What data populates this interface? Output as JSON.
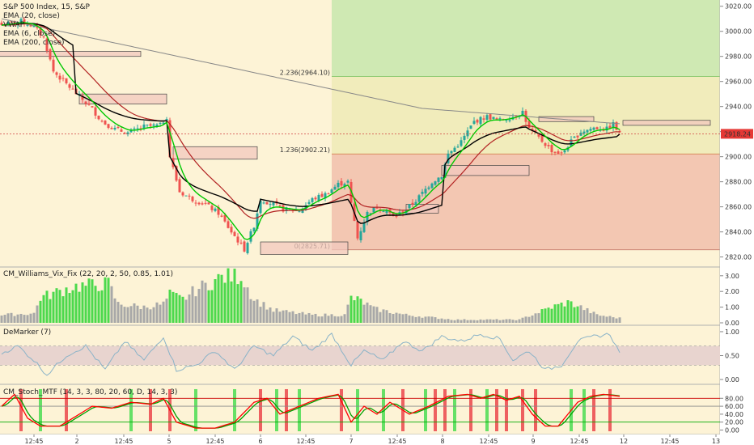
{
  "header": {
    "symbol_line": "S&P 500 Index, 15, S&P",
    "overlays": [
      "EMA (20, close)",
      "VWAP",
      "EMA (6, close)",
      "EMA (200, close)"
    ]
  },
  "colors": {
    "bg_main": "#fdf3d6",
    "zone_green": "#cfe9b3",
    "zone_yellow": "#f1ecbb",
    "zone_red": "#f3c7b2",
    "up": "#26a69a",
    "down": "#ef5350",
    "ema6": "#00c800",
    "ema20": "#b22222",
    "vwap": "#000000",
    "ema200": "#888888",
    "vix_high": "#4cd94c",
    "vix_normal": "#a8a8a8",
    "demarker": "#8ab3c8",
    "stoch_fast": "#ff0000",
    "stoch_slow": "#00a000"
  },
  "chart_data": [
    {
      "type": "candlestick",
      "title": "S&P 500 Index, 15, S&P",
      "ylim": [
        2812,
        3025
      ],
      "y_ticks": [
        2820.0,
        2840.0,
        2860.0,
        2880.0,
        2900.0,
        2920.0,
        2940.0,
        2960.0,
        2980.0,
        3000.0,
        3020.0
      ],
      "x_ticks": [
        "12:45",
        "2",
        "12:45",
        "5",
        "12:45",
        "6",
        "12:45",
        "7",
        "12:45",
        "8",
        "12:45",
        "9",
        "12:45",
        "12",
        "12:45",
        "13"
      ],
      "last_price": "2918.24",
      "fib_levels": [
        {
          "label": "2.236(2964.10)",
          "value": 2964.1
        },
        {
          "label": "1.236(2902.21)",
          "value": 2902.21
        },
        {
          "label": "0(2825.71)",
          "value": 2825.71
        }
      ],
      "anchor_closes": [
        [
          0,
          3005
        ],
        [
          6,
          3008
        ],
        [
          10,
          3004
        ],
        [
          13,
          2995
        ],
        [
          16,
          2968
        ],
        [
          20,
          2958
        ],
        [
          24,
          2948
        ],
        [
          28,
          2938
        ],
        [
          31,
          2928
        ],
        [
          35,
          2922
        ],
        [
          39,
          2919
        ],
        [
          44,
          2924
        ],
        [
          49,
          2925
        ],
        [
          51,
          2932
        ],
        [
          52,
          2900
        ],
        [
          55,
          2872
        ],
        [
          59,
          2866
        ],
        [
          63,
          2862
        ],
        [
          67,
          2855
        ],
        [
          71,
          2840
        ],
        [
          75,
          2826
        ],
        [
          78,
          2845
        ],
        [
          80,
          2866
        ],
        [
          84,
          2862
        ],
        [
          87,
          2858
        ],
        [
          92,
          2857
        ],
        [
          96,
          2866
        ],
        [
          100,
          2870
        ],
        [
          104,
          2878
        ],
        [
          107,
          2880
        ],
        [
          108,
          2862
        ],
        [
          110,
          2835
        ],
        [
          113,
          2855
        ],
        [
          116,
          2860
        ],
        [
          119,
          2857
        ],
        [
          121,
          2852
        ],
        [
          124,
          2856
        ],
        [
          128,
          2865
        ],
        [
          133,
          2880
        ],
        [
          136,
          2885
        ],
        [
          138,
          2902
        ],
        [
          142,
          2912
        ],
        [
          146,
          2928
        ],
        [
          150,
          2932
        ],
        [
          154,
          2929
        ],
        [
          158,
          2932
        ],
        [
          161,
          2936
        ],
        [
          163,
          2922
        ],
        [
          166,
          2915
        ],
        [
          170,
          2905
        ],
        [
          173,
          2902
        ],
        [
          176,
          2912
        ],
        [
          179,
          2920
        ],
        [
          183,
          2923
        ],
        [
          187,
          2922
        ],
        [
          189,
          2926
        ],
        [
          191,
          2918
        ]
      ]
    },
    {
      "type": "bar",
      "title": "CM_Williams_Vix_Fix (22, 20, 2, 50, 0.85, 1.01)",
      "ylim": [
        0,
        3.3
      ],
      "y_ticks": [
        0.0,
        1.0,
        2.0,
        3.0
      ],
      "high_ranges": [
        [
          12,
          33
        ],
        [
          52,
          56
        ],
        [
          64,
          74
        ],
        [
          108,
          111
        ],
        [
          167,
          178
        ]
      ],
      "anchors": [
        [
          0,
          0.5
        ],
        [
          10,
          0.6
        ],
        [
          12,
          1.6
        ],
        [
          22,
          2.3
        ],
        [
          33,
          2.5
        ],
        [
          36,
          1.2
        ],
        [
          44,
          1.0
        ],
        [
          50,
          1.2
        ],
        [
          52,
          1.8
        ],
        [
          56,
          1.5
        ],
        [
          60,
          2.1
        ],
        [
          64,
          2.5
        ],
        [
          68,
          2.9
        ],
        [
          74,
          3.0
        ],
        [
          78,
          1.5
        ],
        [
          84,
          0.8
        ],
        [
          96,
          0.5
        ],
        [
          106,
          0.5
        ],
        [
          108,
          1.6
        ],
        [
          111,
          1.4
        ],
        [
          115,
          0.9
        ],
        [
          125,
          0.5
        ],
        [
          140,
          0.2
        ],
        [
          160,
          0.2
        ],
        [
          165,
          0.6
        ],
        [
          170,
          1.0
        ],
        [
          175,
          1.3
        ],
        [
          178,
          1.1
        ],
        [
          184,
          0.5
        ],
        [
          191,
          0.3
        ]
      ]
    },
    {
      "type": "line",
      "title": "DeMarker (7)",
      "ylim": [
        -0.05,
        1.05
      ],
      "y_ticks": [
        0.0,
        0.5,
        1.0
      ],
      "band": [
        0.3,
        0.7
      ],
      "anchors": [
        [
          0,
          0.55
        ],
        [
          5,
          0.7
        ],
        [
          10,
          0.4
        ],
        [
          14,
          0.1
        ],
        [
          20,
          0.5
        ],
        [
          26,
          0.7
        ],
        [
          32,
          0.2
        ],
        [
          38,
          0.8
        ],
        [
          44,
          0.4
        ],
        [
          50,
          0.9
        ],
        [
          54,
          0.2
        ],
        [
          60,
          0.3
        ],
        [
          66,
          0.6
        ],
        [
          72,
          0.2
        ],
        [
          78,
          0.7
        ],
        [
          84,
          0.5
        ],
        [
          90,
          0.9
        ],
        [
          96,
          0.6
        ],
        [
          102,
          0.95
        ],
        [
          108,
          0.3
        ],
        [
          112,
          0.6
        ],
        [
          118,
          0.4
        ],
        [
          124,
          0.8
        ],
        [
          130,
          0.6
        ],
        [
          136,
          0.9
        ],
        [
          142,
          0.8
        ],
        [
          148,
          0.95
        ],
        [
          154,
          0.85
        ],
        [
          158,
          0.4
        ],
        [
          163,
          0.6
        ],
        [
          168,
          0.2
        ],
        [
          173,
          0.3
        ],
        [
          178,
          0.8
        ],
        [
          183,
          0.9
        ],
        [
          188,
          0.95
        ],
        [
          191,
          0.55
        ]
      ]
    },
    {
      "type": "line",
      "title": "CM_Stoch_MTF (14, 3, 3, 80, 20, 60, D, 14, 3, 3)",
      "ylim": [
        -5,
        105
      ],
      "y_ticks": [
        0.0,
        20.0,
        40.0,
        60.0,
        80.0
      ],
      "levels": [
        20,
        60,
        80
      ],
      "cross_up_bars": [
        12,
        40,
        60,
        72,
        85,
        92,
        110,
        118,
        131,
        140,
        150,
        176,
        180
      ],
      "cross_down_bars": [
        6,
        20,
        46,
        52,
        80,
        88,
        105,
        124,
        134,
        137,
        145,
        153,
        156,
        161,
        165,
        183,
        188
      ],
      "fast_anchors": [
        [
          0,
          60
        ],
        [
          4,
          90
        ],
        [
          8,
          30
        ],
        [
          12,
          10
        ],
        [
          18,
          10
        ],
        [
          24,
          40
        ],
        [
          28,
          60
        ],
        [
          34,
          55
        ],
        [
          40,
          70
        ],
        [
          46,
          65
        ],
        [
          50,
          80
        ],
        [
          54,
          20
        ],
        [
          60,
          5
        ],
        [
          66,
          5
        ],
        [
          72,
          20
        ],
        [
          78,
          70
        ],
        [
          82,
          80
        ],
        [
          86,
          40
        ],
        [
          92,
          60
        ],
        [
          98,
          80
        ],
        [
          104,
          90
        ],
        [
          108,
          20
        ],
        [
          112,
          60
        ],
        [
          116,
          40
        ],
        [
          120,
          70
        ],
        [
          126,
          40
        ],
        [
          132,
          60
        ],
        [
          138,
          85
        ],
        [
          144,
          90
        ],
        [
          148,
          80
        ],
        [
          152,
          90
        ],
        [
          156,
          75
        ],
        [
          160,
          85
        ],
        [
          164,
          40
        ],
        [
          168,
          10
        ],
        [
          172,
          10
        ],
        [
          178,
          70
        ],
        [
          182,
          85
        ],
        [
          186,
          90
        ],
        [
          191,
          85
        ]
      ]
    }
  ]
}
